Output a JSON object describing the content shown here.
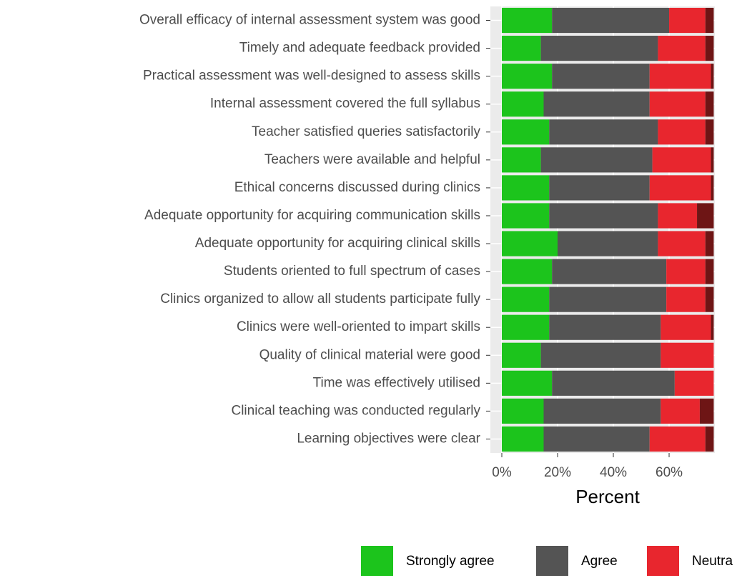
{
  "chart_data": {
    "type": "stacked_bar",
    "orientation": "horizontal",
    "x_label": "Percent",
    "categories": [
      "Overall efficacy of internal assessment system was good",
      "Timely and adequate feedback provided",
      "Practical assessment was well-designed to assess skills",
      "Internal assessment covered the full syllabus",
      "Teacher satisfied queries satisfactorily",
      "Teachers were available and helpful",
      "Ethical concerns discussed during clinics",
      "Adequate opportunity for acquiring communication skills",
      "Adequate opportunity for acquiring clinical skills",
      "Students oriented to full spectrum of cases",
      "Clinics organized to allow all students participate fully",
      "Clinics were well-oriented to impart skills",
      "Quality of clinical material were good",
      "Time was effectively utilised",
      "Clinical teaching was conducted regularly",
      "Learning objectives were clear"
    ],
    "series": [
      {
        "name": "Strongly agree",
        "color": "#1cc41c",
        "values": [
          18,
          14,
          18,
          15,
          17,
          14,
          17,
          17,
          20,
          18,
          17,
          17,
          14,
          18,
          15,
          15
        ]
      },
      {
        "name": "Agree",
        "color": "#545454",
        "values": [
          42,
          42,
          35,
          38,
          39,
          40,
          36,
          39,
          36,
          41,
          42,
          40,
          43,
          44,
          42,
          38
        ]
      },
      {
        "name": "Neutra",
        "color": "#e8262e",
        "values": [
          13,
          17,
          22,
          20,
          17,
          21,
          22,
          14,
          17,
          14,
          14,
          18,
          19,
          14,
          14,
          20
        ]
      },
      {
        "color": "#6e1515",
        "values": [
          3,
          3,
          1,
          3,
          3,
          1,
          1,
          6,
          3,
          3,
          3,
          1,
          0,
          0,
          5,
          3
        ]
      }
    ],
    "xlim": [
      -4.1,
      76.4
    ],
    "xticks": [
      {
        "value": 0,
        "label": "0%"
      },
      {
        "value": 20,
        "label": "20%"
      },
      {
        "value": 40,
        "label": "40%"
      },
      {
        "value": 60,
        "label": "60%"
      }
    ],
    "grid": true
  }
}
